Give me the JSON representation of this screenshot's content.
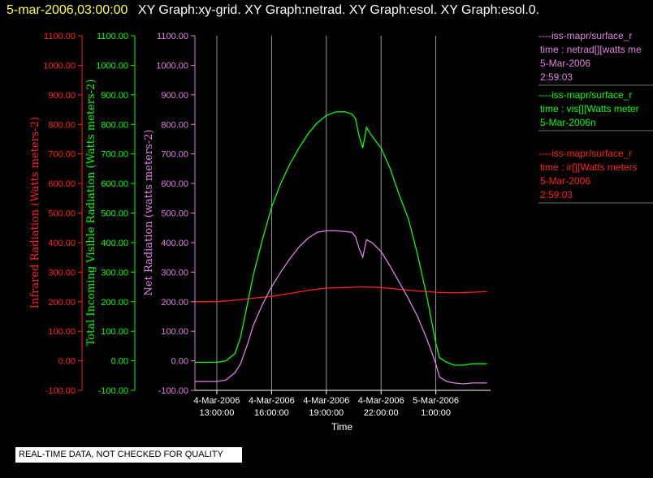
{
  "header": {
    "timestamp": "5-mar-2006,03:00:00",
    "titles": "XY Graph:xy-grid.  XY Graph:netrad.  XY Graph:esol.  XY Graph:esol.0."
  },
  "notice": "REAL-TIME DATA, NOT CHECKED FOR QUALITY",
  "legend": [
    {
      "lines": [
        "----iss-mapr/surface_r",
        "time : netrad[][watts me",
        "5-Mar-2006",
        "2:59:03"
      ],
      "color": "#e080e0"
    },
    {
      "lines": [
        "----iss-mapr/surface_r",
        "time : vis[][Watts meter",
        "5-Mar-2006n"
      ],
      "color": "#00ff00"
    },
    {
      "lines": [
        "----iss-mapr/surface_r",
        "time : ir[][Watts meters",
        "5-Mar-2006",
        "2:59:03"
      ],
      "color": "#ff2020"
    }
  ],
  "chart_data": {
    "type": "line",
    "xlabel": "Time",
    "x_ticks": [
      {
        "value": 13,
        "labels": [
          "4-Mar-2006",
          "13:00:00"
        ]
      },
      {
        "value": 16,
        "labels": [
          "4-Mar-2006",
          "16:00:00"
        ]
      },
      {
        "value": 19,
        "labels": [
          "4-Mar-2006",
          "19:00:00"
        ]
      },
      {
        "value": 22,
        "labels": [
          "4-Mar-2006",
          "22:00:00"
        ]
      },
      {
        "value": 25,
        "labels": [
          "5-Mar-2006",
          "1:00:00"
        ]
      }
    ],
    "x_range_hours": [
      11.8,
      28.0
    ],
    "grid_x_lines": true,
    "ylim": [
      -100,
      1100
    ],
    "y_ticks": [
      "-100.00",
      "0.00",
      "100.00",
      "200.00",
      "300.00",
      "400.00",
      "500.00",
      "600.00",
      "700.00",
      "800.00",
      "900.00",
      "1000.00",
      "1100.00"
    ],
    "axes": [
      {
        "label": "Infrared Radiation (Watts meters-2)",
        "color": "#ff2020"
      },
      {
        "label": "Total Incoming Visible Radiation (Watts meters-2)",
        "color": "#00ff00"
      },
      {
        "label": "Net Radiation (watts meters-2)",
        "color": "#e080e0"
      }
    ],
    "series": [
      {
        "color": "#ff2020",
        "x": [
          11.8,
          13.0,
          14.0,
          15.0,
          16.0,
          17.0,
          18.0,
          19.0,
          20.0,
          21.0,
          22.0,
          23.0,
          24.0,
          25.0,
          26.0,
          27.0,
          27.8
        ],
        "y": [
          200,
          200,
          205,
          212,
          218,
          228,
          238,
          246,
          248,
          250,
          248,
          242,
          236,
          232,
          230,
          232,
          234
        ]
      },
      {
        "color": "#00ff00",
        "x": [
          11.8,
          12.5,
          13.0,
          13.5,
          14.0,
          14.3,
          14.7,
          15.0,
          15.5,
          16.0,
          16.5,
          17.0,
          17.5,
          18.0,
          18.5,
          19.0,
          19.5,
          20.0,
          20.4,
          20.6,
          20.8,
          21.0,
          21.2,
          21.5,
          22.0,
          22.5,
          23.0,
          23.5,
          24.0,
          24.5,
          25.0,
          25.2,
          25.6,
          26.0,
          26.5,
          27.0,
          27.8
        ],
        "y": [
          -5,
          -5,
          -5,
          0,
          25,
          80,
          200,
          290,
          410,
          520,
          600,
          665,
          720,
          768,
          805,
          830,
          842,
          843,
          835,
          820,
          760,
          720,
          790,
          760,
          720,
          650,
          560,
          480,
          360,
          220,
          60,
          10,
          -5,
          -15,
          -15,
          -10,
          -10
        ]
      },
      {
        "color": "#e080e0",
        "x": [
          11.8,
          12.5,
          13.0,
          13.5,
          14.0,
          14.3,
          14.7,
          15.0,
          15.5,
          16.0,
          16.5,
          17.0,
          17.5,
          18.0,
          18.5,
          19.0,
          19.5,
          20.0,
          20.4,
          20.6,
          20.8,
          21.0,
          21.2,
          21.5,
          22.0,
          22.5,
          23.0,
          23.5,
          24.0,
          24.5,
          25.0,
          25.2,
          25.6,
          26.0,
          26.5,
          27.0,
          27.8
        ],
        "y": [
          -70,
          -70,
          -70,
          -65,
          -40,
          -10,
          60,
          120,
          190,
          250,
          300,
          345,
          385,
          415,
          435,
          440,
          440,
          438,
          435,
          420,
          380,
          350,
          410,
          400,
          370,
          320,
          265,
          210,
          150,
          75,
          -10,
          -55,
          -70,
          -75,
          -78,
          -75,
          -75
        ]
      }
    ]
  }
}
